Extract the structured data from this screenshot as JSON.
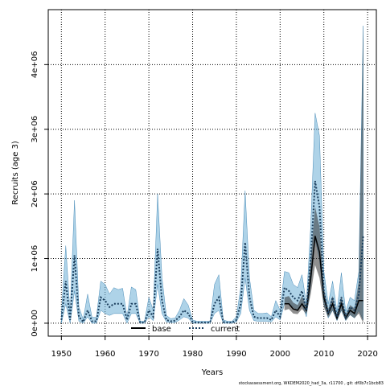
{
  "chart_data": {
    "type": "line",
    "title": "",
    "xlabel": "Years",
    "ylabel": "Recruits (age 3)",
    "xlim": [
      1947,
      2022
    ],
    "ylim": [
      -200000,
      4850000
    ],
    "x_ticks": [
      1950,
      1960,
      1970,
      1980,
      1990,
      2000,
      2010,
      2020
    ],
    "x_tick_labels": [
      "1950",
      "1960",
      "1970",
      "1980",
      "1990",
      "2000",
      "2010",
      "2020"
    ],
    "y_ticks": [
      0,
      1000000,
      2000000,
      3000000,
      4000000
    ],
    "y_tick_labels": [
      "0e+00",
      "1e+06",
      "2e+06",
      "3e+06",
      "4e+06"
    ],
    "grid": true,
    "legend": {
      "placement": "bottom-center",
      "entries": [
        "base",
        "current"
      ]
    },
    "colors": {
      "base_line": "#000000",
      "base_band": "#333333",
      "current_line": "#1a3d5c",
      "current_band": "#6baed6",
      "grid": "#000000"
    },
    "x": [
      1950,
      1951,
      1952,
      1953,
      1954,
      1955,
      1956,
      1957,
      1958,
      1959,
      1960,
      1961,
      1962,
      1963,
      1964,
      1965,
      1966,
      1967,
      1968,
      1969,
      1970,
      1971,
      1972,
      1973,
      1974,
      1975,
      1976,
      1977,
      1978,
      1979,
      1980,
      1981,
      1982,
      1983,
      1984,
      1985,
      1986,
      1987,
      1988,
      1989,
      1990,
      1991,
      1992,
      1993,
      1994,
      1995,
      1996,
      1997,
      1998,
      1999,
      2000,
      2001,
      2002,
      2003,
      2004,
      2005,
      2006,
      2007,
      2008,
      2009,
      2010,
      2011,
      2012,
      2013,
      2014,
      2015,
      2016,
      2017,
      2018,
      2019
    ],
    "series": [
      {
        "name": "base",
        "values": [
          null,
          null,
          null,
          null,
          null,
          null,
          null,
          null,
          null,
          null,
          null,
          null,
          null,
          null,
          null,
          null,
          null,
          null,
          null,
          null,
          null,
          null,
          null,
          null,
          null,
          null,
          null,
          null,
          null,
          null,
          null,
          null,
          null,
          null,
          null,
          null,
          null,
          null,
          null,
          null,
          null,
          null,
          null,
          null,
          null,
          null,
          null,
          null,
          null,
          null,
          null,
          300000,
          300000,
          220000,
          200000,
          300000,
          200000,
          700000,
          1350000,
          1100000,
          400000,
          150000,
          300000,
          80000,
          300000,
          80000,
          200000,
          150000,
          350000,
          350000
        ],
        "lower": [
          null,
          null,
          null,
          null,
          null,
          null,
          null,
          null,
          null,
          null,
          null,
          null,
          null,
          null,
          null,
          null,
          null,
          null,
          null,
          null,
          null,
          null,
          null,
          null,
          null,
          null,
          null,
          null,
          null,
          null,
          null,
          null,
          null,
          null,
          null,
          null,
          null,
          null,
          null,
          null,
          null,
          null,
          null,
          null,
          null,
          null,
          null,
          null,
          null,
          null,
          null,
          200000,
          220000,
          150000,
          140000,
          220000,
          140000,
          450000,
          900000,
          700000,
          250000,
          90000,
          200000,
          40000,
          200000,
          40000,
          130000,
          80000,
          150000,
          0
        ],
        "upper": [
          null,
          null,
          null,
          null,
          null,
          null,
          null,
          null,
          null,
          null,
          null,
          null,
          null,
          null,
          null,
          null,
          null,
          null,
          null,
          null,
          null,
          null,
          null,
          null,
          null,
          null,
          null,
          null,
          null,
          null,
          null,
          null,
          null,
          null,
          null,
          null,
          null,
          null,
          null,
          null,
          null,
          null,
          null,
          null,
          null,
          null,
          null,
          null,
          null,
          null,
          null,
          400000,
          420000,
          320000,
          280000,
          420000,
          280000,
          1000000,
          1800000,
          1500000,
          550000,
          220000,
          420000,
          130000,
          420000,
          130000,
          280000,
          230000,
          650000,
          4600000
        ]
      },
      {
        "name": "current",
        "values": [
          50000,
          650000,
          50000,
          1050000,
          100000,
          20000,
          200000,
          30000,
          30000,
          400000,
          350000,
          250000,
          300000,
          300000,
          300000,
          50000,
          300000,
          300000,
          10000,
          10000,
          200000,
          100000,
          1150000,
          350000,
          50000,
          30000,
          40000,
          100000,
          200000,
          150000,
          20000,
          10000,
          10000,
          10000,
          10000,
          300000,
          400000,
          20000,
          10000,
          10000,
          50000,
          300000,
          1250000,
          400000,
          100000,
          80000,
          80000,
          80000,
          50000,
          200000,
          100000,
          550000,
          500000,
          400000,
          350000,
          500000,
          200000,
          1000000,
          2200000,
          1800000,
          500000,
          150000,
          400000,
          100000,
          400000,
          100000,
          250000,
          200000,
          450000,
          1350000
        ],
        "lower": [
          0,
          300000,
          0,
          500000,
          30000,
          0,
          100000,
          0,
          0,
          200000,
          150000,
          120000,
          150000,
          150000,
          150000,
          0,
          150000,
          150000,
          0,
          0,
          100000,
          40000,
          600000,
          150000,
          20000,
          10000,
          10000,
          50000,
          100000,
          80000,
          0,
          0,
          0,
          0,
          0,
          150000,
          200000,
          0,
          0,
          0,
          20000,
          150000,
          700000,
          200000,
          40000,
          30000,
          30000,
          30000,
          20000,
          100000,
          50000,
          300000,
          300000,
          250000,
          200000,
          300000,
          100000,
          600000,
          1300000,
          1000000,
          300000,
          80000,
          200000,
          40000,
          200000,
          40000,
          130000,
          80000,
          200000,
          50000
        ],
        "upper": [
          150000,
          1200000,
          150000,
          1900000,
          250000,
          60000,
          450000,
          90000,
          90000,
          650000,
          600000,
          450000,
          550000,
          520000,
          540000,
          100000,
          560000,
          520000,
          30000,
          30000,
          400000,
          200000,
          2000000,
          700000,
          120000,
          70000,
          80000,
          200000,
          380000,
          280000,
          50000,
          30000,
          30000,
          30000,
          30000,
          600000,
          750000,
          50000,
          30000,
          30000,
          100000,
          550000,
          2050000,
          700000,
          200000,
          150000,
          150000,
          160000,
          100000,
          350000,
          200000,
          800000,
          780000,
          600000,
          550000,
          750000,
          300000,
          1500000,
          3250000,
          2900000,
          800000,
          300000,
          650000,
          180000,
          780000,
          180000,
          400000,
          350000,
          800000,
          4600000
        ]
      }
    ]
  },
  "legend": {
    "base_label": "base",
    "current_label": "current"
  },
  "footer": "stockassessment.org,  WKDEM2020_had_3a, r11700 ,  git:  df0b7c1bcb83"
}
